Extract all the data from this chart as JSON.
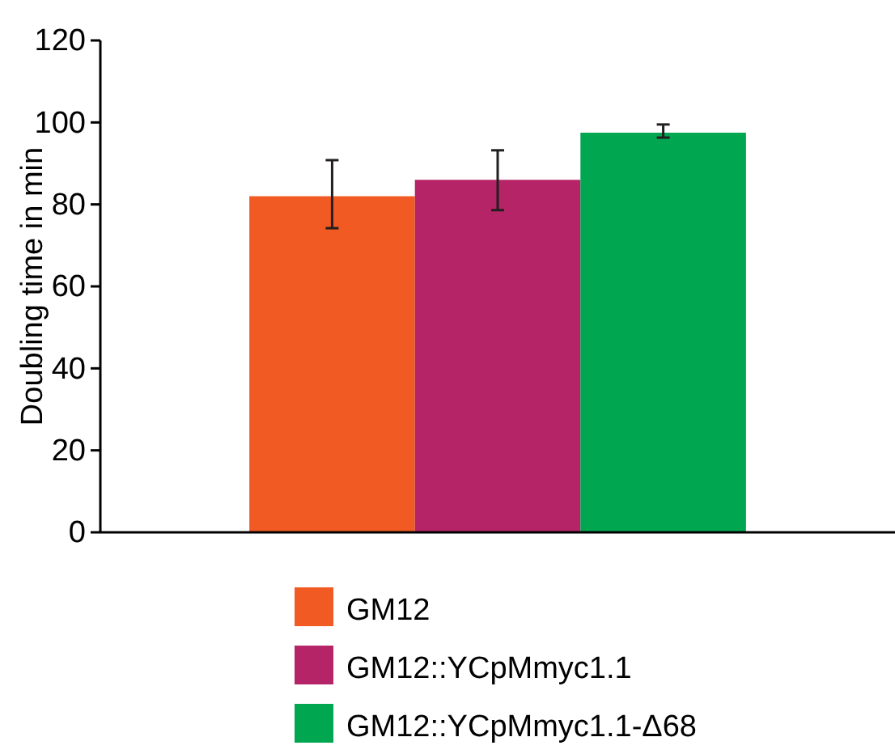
{
  "chart_data": {
    "type": "bar",
    "ylabel": "Doubling time in min",
    "categories": [
      null
    ],
    "series": [
      {
        "name": "GM12",
        "color": "#f15a22",
        "values": [
          82
        ],
        "errors": [
          [
            74.2,
            90.8
          ]
        ]
      },
      {
        "name": "GM12::YCpMmyc1.1",
        "color": "#b52466",
        "values": [
          86
        ],
        "errors": [
          [
            78.6,
            93.2
          ]
        ]
      },
      {
        "name": "GM12::YCpMmyc1.1-Δ68",
        "color": "#00a650",
        "values": [
          97.5
        ],
        "errors": [
          [
            96.3,
            99.5
          ]
        ]
      }
    ],
    "ylim": [
      0,
      120
    ],
    "yticks": [
      0,
      20,
      40,
      60,
      80,
      100,
      120
    ],
    "grid": false,
    "legend": "bottom"
  }
}
